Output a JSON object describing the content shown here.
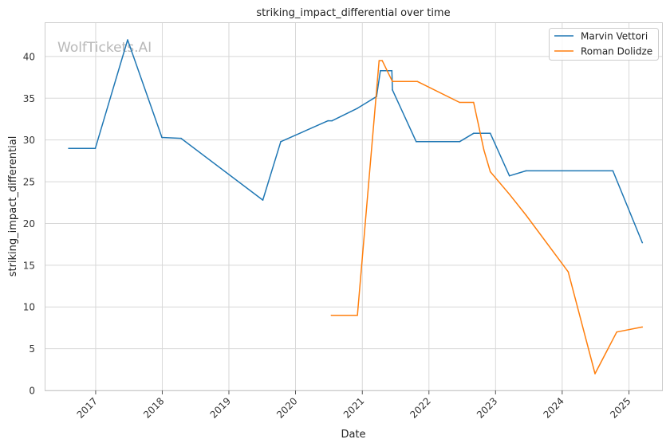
{
  "watermark": "WolfTickets.AI",
  "chart_data": {
    "type": "line",
    "title": "striking_impact_differential over time",
    "xlabel": "Date",
    "ylabel": "striking_impact_differential",
    "x_axis": "date",
    "xlim": [
      "2016-04-01",
      "2025-07-01"
    ],
    "ylim": [
      0,
      44
    ],
    "x_ticks": [
      "2017",
      "2018",
      "2019",
      "2020",
      "2021",
      "2022",
      "2023",
      "2024",
      "2025"
    ],
    "y_ticks": [
      0,
      5,
      10,
      15,
      20,
      25,
      30,
      35,
      40
    ],
    "grid": true,
    "legend_position": "top-right",
    "series": [
      {
        "name": "Marvin Vettori",
        "color": "#1f77b4",
        "points": [
          [
            "2016-08-06",
            29.0
          ],
          [
            "2016-12-30",
            29.0
          ],
          [
            "2017-06-25",
            42.0
          ],
          [
            "2017-12-30",
            30.3
          ],
          [
            "2018-04-14",
            30.2
          ],
          [
            "2019-07-06",
            22.8
          ],
          [
            "2019-10-12",
            29.8
          ],
          [
            "2020-06-27",
            32.3
          ],
          [
            "2020-07-19",
            32.3
          ],
          [
            "2020-12-05",
            33.8
          ],
          [
            "2021-03-20",
            35.2
          ],
          [
            "2021-04-10",
            38.3
          ],
          [
            "2021-06-12",
            38.3
          ],
          [
            "2021-06-15",
            36.0
          ],
          [
            "2021-10-23",
            29.8
          ],
          [
            "2022-06-18",
            29.8
          ],
          [
            "2022-09-03",
            30.8
          ],
          [
            "2022-12-03",
            30.8
          ],
          [
            "2023-03-18",
            25.7
          ],
          [
            "2023-06-17",
            26.3
          ],
          [
            "2024-10-05",
            26.3
          ],
          [
            "2025-03-15",
            17.7
          ]
        ]
      },
      {
        "name": "Roman Dolidze",
        "color": "#ff7f0e",
        "points": [
          [
            "2020-07-15",
            9.0
          ],
          [
            "2020-12-05",
            9.0
          ],
          [
            "2021-04-03",
            39.5
          ],
          [
            "2021-04-20",
            39.5
          ],
          [
            "2021-06-15",
            37.0
          ],
          [
            "2021-10-30",
            37.0
          ],
          [
            "2022-06-18",
            34.5
          ],
          [
            "2022-09-03",
            34.5
          ],
          [
            "2022-10-29",
            28.8
          ],
          [
            "2022-12-03",
            26.2
          ],
          [
            "2023-03-18",
            23.5
          ],
          [
            "2023-06-17",
            21.0
          ],
          [
            "2024-02-03",
            14.2
          ],
          [
            "2024-06-29",
            2.0
          ],
          [
            "2024-10-26",
            7.0
          ],
          [
            "2025-03-15",
            7.6
          ]
        ]
      }
    ]
  }
}
